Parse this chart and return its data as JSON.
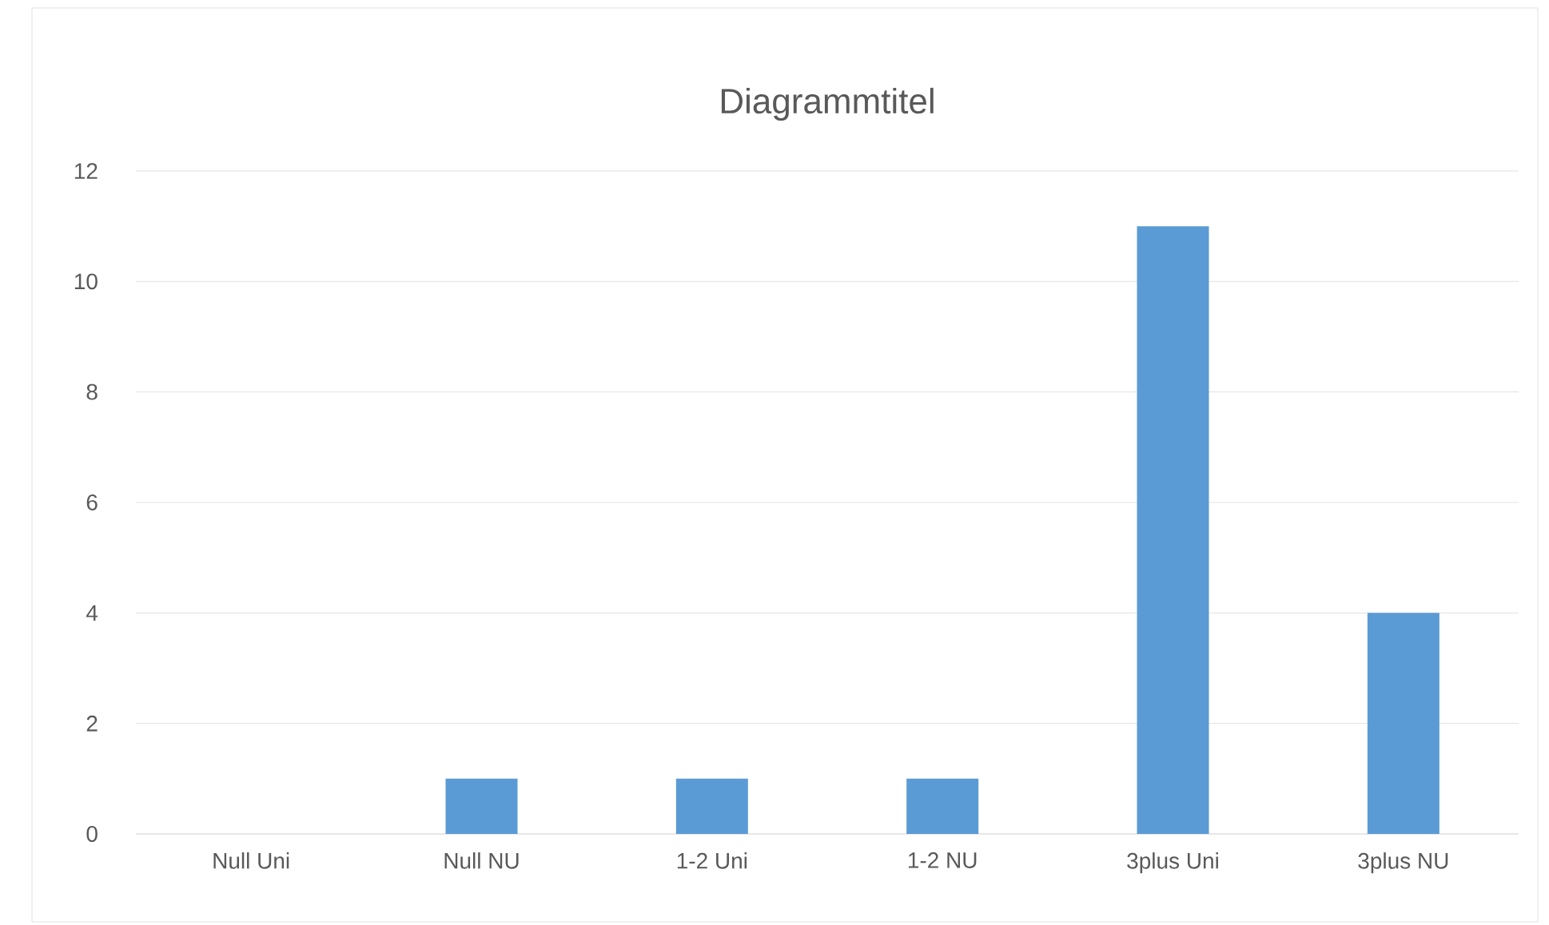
{
  "chart_data": {
    "type": "bar",
    "title": "Diagrammtitel",
    "categories": [
      "Null Uni",
      "Null NU",
      "1-2 Uni",
      "1-2 NU",
      "3plus Uni",
      "3plus NU"
    ],
    "values": [
      0,
      1,
      1,
      1,
      11,
      4
    ],
    "color": "#5b9bd5",
    "ylim": [
      0,
      12
    ],
    "yticks": [
      0,
      2,
      4,
      6,
      8,
      10,
      12
    ],
    "grid": "y"
  }
}
